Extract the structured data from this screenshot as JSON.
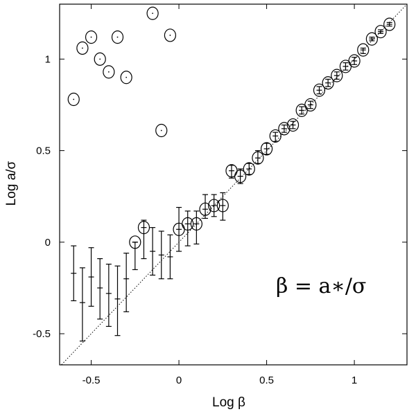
{
  "chart_data": {
    "type": "scatter",
    "title": "",
    "xlabel": "Log β",
    "ylabel": "Log a/σ",
    "xlim": [
      -0.68,
      1.3
    ],
    "ylim": [
      -0.67,
      1.3
    ],
    "xticks": [
      -0.5,
      0,
      0.5,
      1
    ],
    "xtick_labels": [
      "-0.5",
      "0",
      "0.5",
      "1"
    ],
    "yticks": [
      -0.5,
      0,
      0.5,
      1
    ],
    "ytick_labels": [
      "-0.5",
      "0",
      "0.5",
      "1"
    ],
    "grid": false,
    "reference_line": {
      "style": "dotted",
      "from": [
        -0.68,
        -0.68
      ],
      "to": [
        1.3,
        1.3
      ]
    },
    "annotation": "β  =  a∗/σ",
    "outliers": [
      {
        "x": -0.6,
        "y": 0.78
      },
      {
        "x": -0.55,
        "y": 1.06
      },
      {
        "x": -0.5,
        "y": 1.12
      },
      {
        "x": -0.45,
        "y": 1.0
      },
      {
        "x": -0.4,
        "y": 0.93
      },
      {
        "x": -0.35,
        "y": 1.12
      },
      {
        "x": -0.3,
        "y": 0.9
      },
      {
        "x": -0.15,
        "y": 1.25
      },
      {
        "x": -0.1,
        "y": 0.61
      },
      {
        "x": -0.05,
        "y": 1.13
      }
    ],
    "points": [
      {
        "x": -0.6,
        "y": -0.17,
        "lo": -0.32,
        "hi": -0.02,
        "circle": false
      },
      {
        "x": -0.55,
        "y": -0.33,
        "lo": -0.54,
        "hi": -0.14,
        "circle": false
      },
      {
        "x": -0.5,
        "y": -0.19,
        "lo": -0.35,
        "hi": -0.03,
        "circle": false
      },
      {
        "x": -0.45,
        "y": -0.25,
        "lo": -0.42,
        "hi": -0.09,
        "circle": false
      },
      {
        "x": -0.4,
        "y": -0.28,
        "lo": -0.46,
        "hi": -0.12,
        "circle": false
      },
      {
        "x": -0.35,
        "y": -0.31,
        "lo": -0.51,
        "hi": -0.13,
        "circle": false
      },
      {
        "x": -0.3,
        "y": -0.2,
        "lo": -0.38,
        "hi": -0.06,
        "circle": false
      },
      {
        "x": -0.25,
        "y": 0.0,
        "lo": -0.15,
        "hi": 0.0,
        "circle": true
      },
      {
        "x": -0.2,
        "y": 0.08,
        "lo": -0.09,
        "hi": 0.12,
        "circle": true
      },
      {
        "x": -0.15,
        "y": -0.05,
        "lo": -0.18,
        "hi": 0.08,
        "circle": false
      },
      {
        "x": -0.1,
        "y": -0.07,
        "lo": -0.2,
        "hi": 0.06,
        "circle": false
      },
      {
        "x": -0.05,
        "y": -0.08,
        "lo": -0.2,
        "hi": 0.04,
        "circle": false
      },
      {
        "x": 0.0,
        "y": 0.07,
        "lo": -0.05,
        "hi": 0.19,
        "circle": true
      },
      {
        "x": 0.05,
        "y": 0.1,
        "lo": -0.02,
        "hi": 0.17,
        "circle": true
      },
      {
        "x": 0.1,
        "y": 0.1,
        "lo": -0.01,
        "hi": 0.17,
        "circle": true
      },
      {
        "x": 0.15,
        "y": 0.18,
        "lo": 0.13,
        "hi": 0.26,
        "circle": true
      },
      {
        "x": 0.2,
        "y": 0.2,
        "lo": 0.14,
        "hi": 0.26,
        "circle": true
      },
      {
        "x": 0.25,
        "y": 0.2,
        "lo": 0.12,
        "hi": 0.27,
        "circle": true
      },
      {
        "x": 0.3,
        "y": 0.39,
        "lo": 0.35,
        "hi": 0.42,
        "circle": true
      },
      {
        "x": 0.35,
        "y": 0.36,
        "lo": 0.32,
        "hi": 0.4,
        "circle": true
      },
      {
        "x": 0.4,
        "y": 0.4,
        "lo": 0.37,
        "hi": 0.43,
        "circle": true
      },
      {
        "x": 0.45,
        "y": 0.46,
        "lo": 0.43,
        "hi": 0.5,
        "circle": true
      },
      {
        "x": 0.5,
        "y": 0.51,
        "lo": 0.48,
        "hi": 0.54,
        "circle": true
      },
      {
        "x": 0.55,
        "y": 0.58,
        "lo": 0.55,
        "hi": 0.6,
        "circle": true
      },
      {
        "x": 0.6,
        "y": 0.62,
        "lo": 0.6,
        "hi": 0.64,
        "circle": true
      },
      {
        "x": 0.65,
        "y": 0.64,
        "lo": 0.62,
        "hi": 0.66,
        "circle": true
      },
      {
        "x": 0.7,
        "y": 0.72,
        "lo": 0.7,
        "hi": 0.74,
        "circle": true
      },
      {
        "x": 0.75,
        "y": 0.75,
        "lo": 0.73,
        "hi": 0.77,
        "circle": true
      },
      {
        "x": 0.8,
        "y": 0.83,
        "lo": 0.81,
        "hi": 0.85,
        "circle": true
      },
      {
        "x": 0.85,
        "y": 0.87,
        "lo": 0.85,
        "hi": 0.89,
        "circle": true
      },
      {
        "x": 0.9,
        "y": 0.91,
        "lo": 0.89,
        "hi": 0.93,
        "circle": true
      },
      {
        "x": 0.95,
        "y": 0.96,
        "lo": 0.94,
        "hi": 0.98,
        "circle": true
      },
      {
        "x": 1.0,
        "y": 0.99,
        "lo": 0.97,
        "hi": 1.01,
        "circle": true
      },
      {
        "x": 1.05,
        "y": 1.05,
        "lo": 1.03,
        "hi": 1.06,
        "circle": true
      },
      {
        "x": 1.1,
        "y": 1.11,
        "lo": 1.1,
        "hi": 1.12,
        "circle": true
      },
      {
        "x": 1.15,
        "y": 1.15,
        "lo": 1.14,
        "hi": 1.16,
        "circle": true
      },
      {
        "x": 1.2,
        "y": 1.19,
        "lo": 1.18,
        "hi": 1.2,
        "circle": true
      }
    ]
  }
}
